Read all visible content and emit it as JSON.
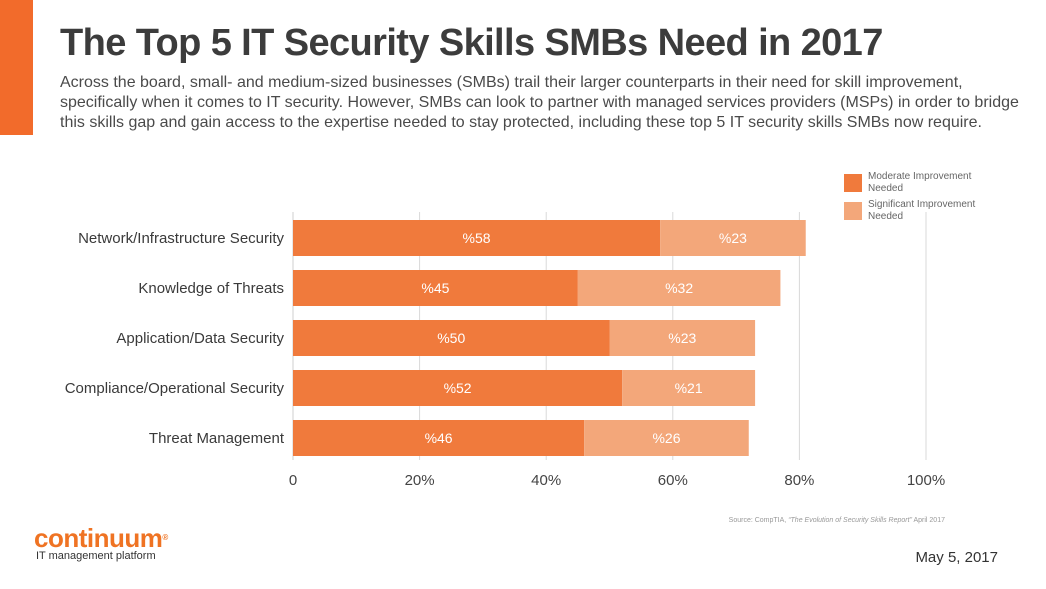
{
  "header": {
    "title": "The Top 5 IT Security Skills SMBs Need in 2017",
    "intro": "Across the board, small- and medium-sized businesses (SMBs) trail their larger counterparts in their need for skill improvement, specifically when it comes to IT security. However, SMBs can look to partner with managed services providers (MSPs) in order to bridge this skills gap and gain access to the expertise needed to stay protected, including these top 5 IT security skills SMBs now require."
  },
  "colors": {
    "accent": "#f26b2b",
    "moderate": "#f07a3c",
    "significant": "#f3a77a"
  },
  "chart_data": {
    "type": "bar",
    "orientation": "horizontal",
    "stacked": true,
    "categories": [
      "Network/Infrastructure Security",
      "Knowledge of Threats",
      "Application/Data Security",
      "Compliance/Operational Security",
      "Threat Management"
    ],
    "series": [
      {
        "name": "Moderate Improvement Needed",
        "values": [
          58,
          45,
          50,
          52,
          46
        ],
        "labels": [
          "%58",
          "%45",
          "%50",
          "%52",
          "%46"
        ],
        "color": "#f07a3c"
      },
      {
        "name": "Significant Improvement Needed",
        "values": [
          23,
          32,
          23,
          21,
          26
        ],
        "labels": [
          "%23",
          "%32",
          "%23",
          "%21",
          "%26"
        ],
        "color": "#f3a77a"
      }
    ],
    "xlim": [
      0,
      100
    ],
    "xticks": [
      0,
      20,
      40,
      60,
      80,
      100
    ],
    "xtick_labels": [
      "0",
      "20%",
      "40%",
      "60%",
      "80%",
      "100%"
    ],
    "grid": true,
    "legend_position": "top-right"
  },
  "legend": {
    "items": [
      {
        "line1": "Moderate Improvement",
        "line2": "Needed"
      },
      {
        "line1": "Significant Improvement",
        "line2": "Needed"
      }
    ]
  },
  "source": {
    "prefix": "Source: CompTIA, ",
    "report": "“The Evolution of Security Skills Report”",
    "suffix": " April 2017"
  },
  "brand": {
    "name": "continuum",
    "registered": "®",
    "tagline": "IT management platform"
  },
  "date": "May 5, 2017"
}
